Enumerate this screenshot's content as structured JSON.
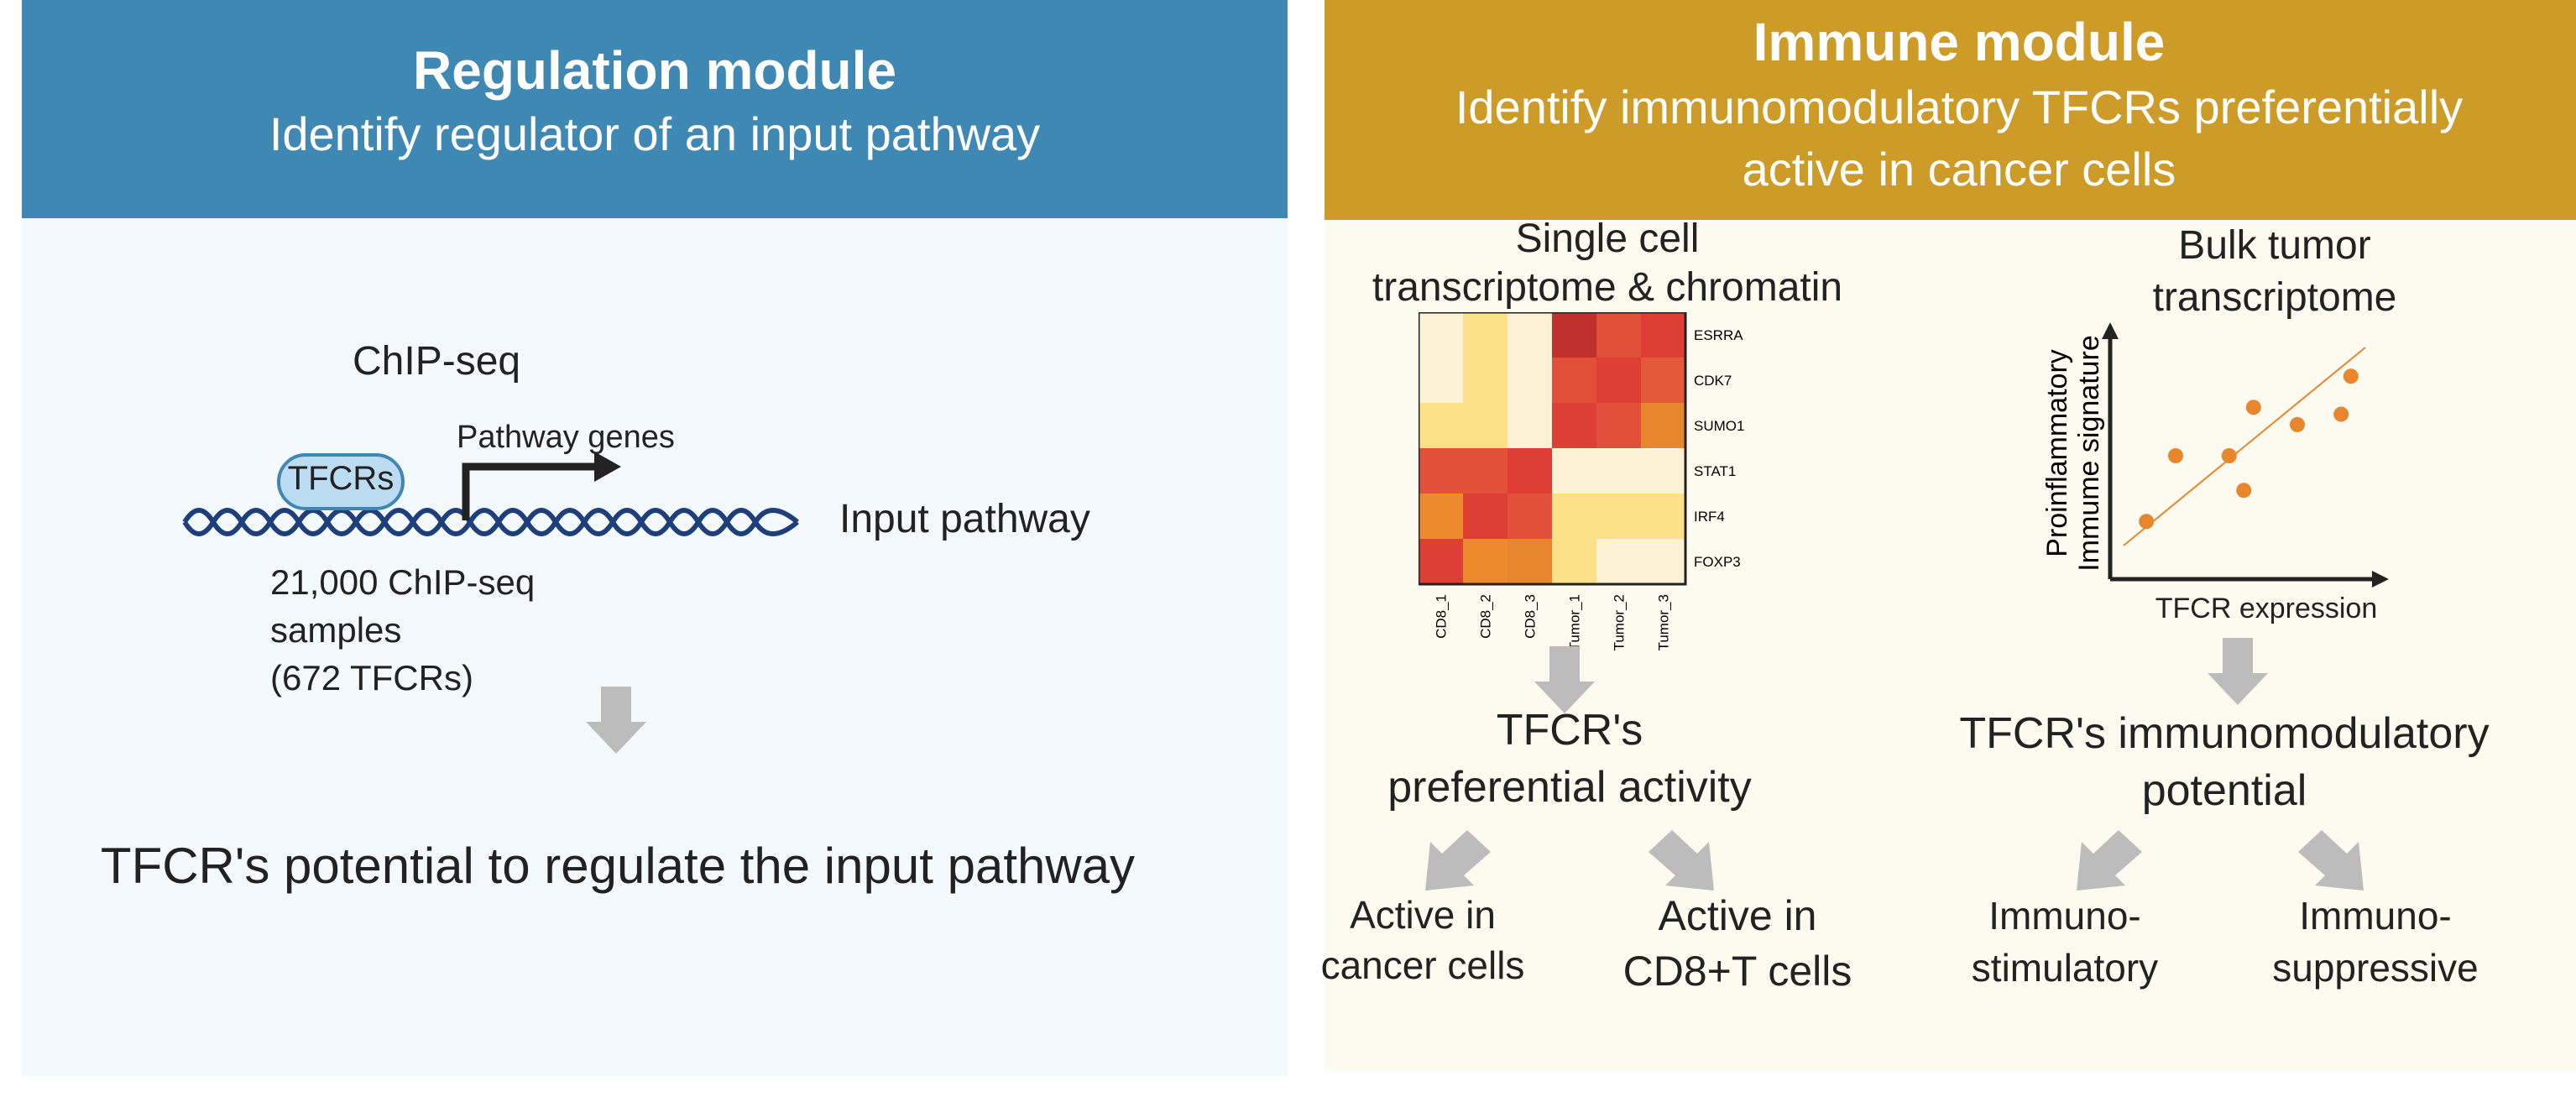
{
  "regulation": {
    "title": "Regulation module",
    "subtitle": "Identify regulator of an input pathway",
    "chipseq_label": "ChIP-seq",
    "tfcrs_label": "TFCRs",
    "pathway_genes_label": "Pathway genes",
    "input_pathway_label": "Input pathway",
    "samples_line1": "21,000 ChIP-seq",
    "samples_line2": "samples",
    "samples_line3": "(672 TFCRs)",
    "result": "TFCR's potential to regulate the input pathway"
  },
  "immune": {
    "title": "Immune module",
    "subtitle_line1": "Identify immunomodulatory TFCRs preferentially",
    "subtitle_line2": "active in cancer cells",
    "single_cell_line1": "Single cell",
    "single_cell_line2": "transcriptome & chromatin",
    "heatmap": {
      "rows": [
        "ESRRA",
        "CDK7",
        "SUMO1",
        "STAT1",
        "IRF4",
        "FOXP3"
      ],
      "cols": [
        "CD8_1",
        "CD8_2",
        "CD8_3",
        "Tumor_1",
        "Tumor_2",
        "Tumor_3"
      ],
      "colors": [
        [
          "#fef2d6",
          "#fde18a",
          "#fef2d6",
          "#c0312d",
          "#e1503a",
          "#dd3f34"
        ],
        [
          "#fef2d6",
          "#fde18a",
          "#fef2d6",
          "#e3503a",
          "#dd3f34",
          "#e25a3a"
        ],
        [
          "#fde18a",
          "#fde18a",
          "#fef2d6",
          "#dd3f34",
          "#e1503a",
          "#e8862e"
        ],
        [
          "#e1503a",
          "#e1503a",
          "#dd3f34",
          "#fef2d6",
          "#fef2d6",
          "#fef2d6"
        ],
        [
          "#ec8a2c",
          "#dd3f34",
          "#e1503a",
          "#fde18a",
          "#fde18a",
          "#fde18a"
        ],
        [
          "#dd3f34",
          "#ec8a2c",
          "#e8862e",
          "#fde18a",
          "#fef2d6",
          "#fef2d6"
        ]
      ]
    },
    "bulk_line1": "Bulk tumor",
    "bulk_line2": "transcriptome",
    "scatter": {
      "ylabel_line1": "Proinflammatory",
      "ylabel_line2": "Immume signature",
      "xlabel": "TFCR expression",
      "points": [
        [
          0.08,
          0.12
        ],
        [
          0.2,
          0.5
        ],
        [
          0.42,
          0.5
        ],
        [
          0.48,
          0.3
        ],
        [
          0.52,
          0.78
        ],
        [
          0.7,
          0.68
        ],
        [
          0.88,
          0.74
        ],
        [
          0.92,
          0.96
        ]
      ],
      "point_color": "#e8862e"
    },
    "pref_line1": "TFCR's",
    "pref_line2": "preferential activity",
    "active_cancer_line1": "Active in",
    "active_cancer_line2": "cancer cells",
    "active_cd8_line1": "Active in",
    "active_cd8_line2": "CD8+T cells",
    "immuno_line1": "TFCR's immunomodulatory",
    "immuno_line2": "potential",
    "stim_line1": "Immuno-",
    "stim_line2": "stimulatory",
    "supp_line1": "Immuno-",
    "supp_line2": "suppressive"
  },
  "colors": {
    "regulation_header": "#3f88b4",
    "regulation_bg": "#f3f9fd",
    "immune_header": "#cc9b28",
    "immune_bg": "#fdfaf0",
    "arrow_gray": "#bcbcbc",
    "dna_blue": "#1f3f7a",
    "tfcr_fill": "#bcdcf3"
  }
}
